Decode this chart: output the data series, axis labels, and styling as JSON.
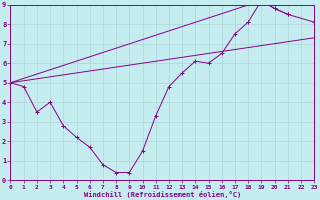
{
  "xlabel": "Windchill (Refroidissement éolien,°C)",
  "bg_color": "#c5ecee",
  "grid_color": "#aed4da",
  "line_color": "#880088",
  "spine_color": "#880088",
  "xmin": 0,
  "xmax": 23,
  "ymin": 0,
  "ymax": 9,
  "xticks": [
    0,
    1,
    2,
    3,
    4,
    5,
    6,
    7,
    8,
    9,
    10,
    11,
    12,
    13,
    14,
    15,
    16,
    17,
    18,
    19,
    20,
    21,
    22,
    23
  ],
  "yticks": [
    0,
    1,
    2,
    3,
    4,
    5,
    6,
    7,
    8,
    9
  ],
  "curve1_x": [
    0,
    1,
    2,
    3,
    4,
    5,
    6,
    7,
    8,
    9,
    10,
    11,
    12,
    13,
    14,
    15,
    16,
    17,
    18,
    19,
    20,
    21
  ],
  "curve1_y": [
    5.0,
    4.8,
    3.5,
    4.0,
    2.8,
    2.2,
    1.7,
    0.8,
    0.4,
    0.4,
    1.5,
    3.3,
    4.8,
    5.5,
    6.1,
    6.0,
    6.5,
    7.5,
    8.1,
    9.2,
    8.8,
    8.5
  ],
  "curve2_x": [
    0,
    23
  ],
  "curve2_y": [
    5.0,
    7.3
  ],
  "curve3_x": [
    0,
    19,
    20,
    21,
    23
  ],
  "curve3_y": [
    5.0,
    9.2,
    8.8,
    8.5,
    8.1
  ]
}
